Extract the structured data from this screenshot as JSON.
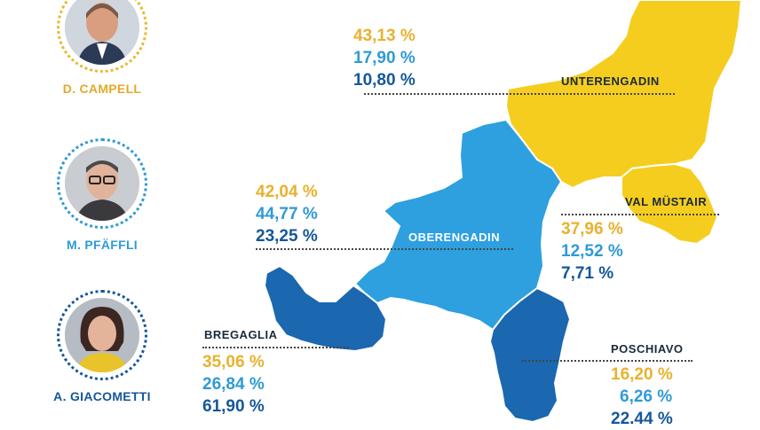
{
  "candidates": [
    {
      "name": "D. CAMPELL"
    },
    {
      "name": "M. PFÄFFLI"
    },
    {
      "name": "A. GIACOMETTI"
    }
  ],
  "regions": {
    "unterengadin": {
      "label": "UNTERENGADIN",
      "results": [
        "43,13 %",
        "17,90 %",
        "10,80 %"
      ]
    },
    "oberengadin": {
      "label": "OBERENGADIN",
      "results": [
        "42,04 %",
        "44,77 %",
        "23,25 %"
      ]
    },
    "valmustair": {
      "label": "VAL MÜSTAIR",
      "results": [
        "37,96 %",
        "12,52 %",
        "7,71 %"
      ]
    },
    "bregaglia": {
      "label": "BREGAGLIA",
      "results": [
        "35,06  %",
        "26,84 %",
        "61,90 %"
      ]
    },
    "poschiavo": {
      "label": "POSCHIAVO",
      "results": [
        "16,20 %",
        "6,26 %",
        "22.44 %"
      ]
    }
  },
  "colors": {
    "campell": "#f5cd1f",
    "pfaeffli": "#2f9ad6",
    "giacometti": "#15579a"
  }
}
